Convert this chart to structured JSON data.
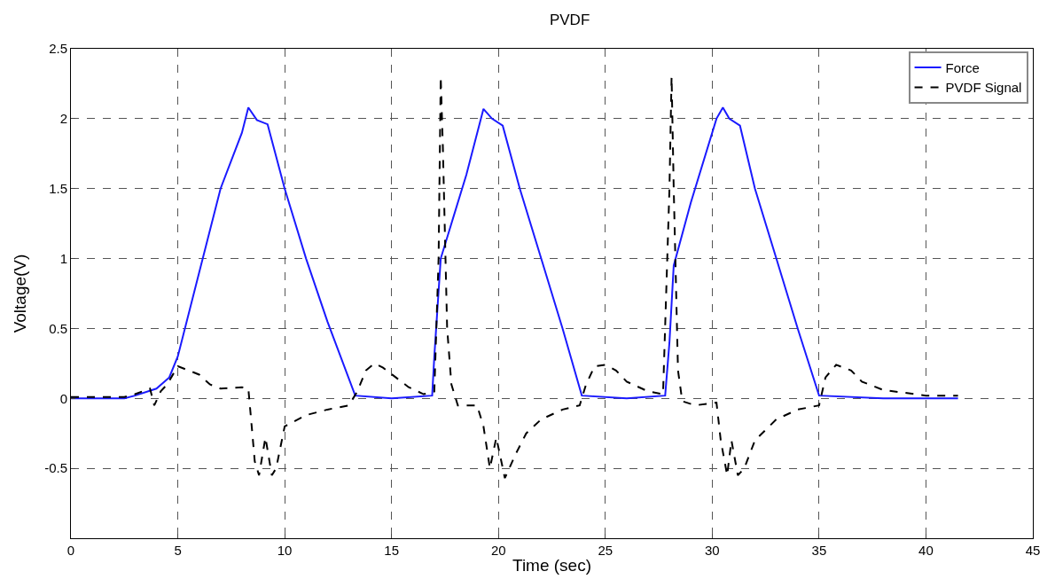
{
  "chart_data": {
    "type": "line",
    "title": "PVDF",
    "xlabel": "Time (sec)",
    "ylabel": "Voltage(V)",
    "xlim": [
      0,
      45
    ],
    "xticks": [
      0,
      5,
      10,
      15,
      20,
      25,
      30,
      35,
      40,
      45
    ],
    "ylim": [
      -1,
      2.5
    ],
    "yticks": [
      -0.5,
      0,
      0.5,
      1,
      1.5,
      2,
      2.5
    ],
    "grid": true,
    "legend": "top right",
    "marker": "none",
    "series": [
      {
        "name": "Force",
        "color": "#1a1aff",
        "line_style": "solid",
        "x": [
          0,
          2.5,
          3,
          4,
          4.6,
          5,
          6,
          7,
          8,
          8.3,
          8.7,
          9.2,
          10,
          11,
          12,
          13.3,
          15,
          16.9,
          17.0,
          17.3,
          18.5,
          19.3,
          19.7,
          20.2,
          21,
          22,
          23,
          23.9,
          26,
          27.8,
          28.0,
          28.2,
          29,
          30.2,
          30.5,
          30.8,
          31.3,
          32,
          33,
          34,
          35,
          38,
          41.5
        ],
        "values": [
          0,
          0,
          0.02,
          0.07,
          0.15,
          0.3,
          0.9,
          1.5,
          1.9,
          2.08,
          1.99,
          1.96,
          1.5,
          1.0,
          0.55,
          0.02,
          0,
          0.02,
          0.3,
          1.0,
          1.6,
          2.07,
          2.0,
          1.95,
          1.5,
          1.0,
          0.5,
          0.02,
          0,
          0.02,
          0.4,
          0.95,
          1.4,
          2.0,
          2.08,
          2.0,
          1.95,
          1.5,
          1.0,
          0.5,
          0.02,
          0,
          0
        ]
      },
      {
        "name": "PVDF Signal",
        "color": "#000000",
        "line_style": "dashed",
        "x": [
          0,
          2.5,
          3,
          3.7,
          3.9,
          4.2,
          4.5,
          5,
          5.5,
          6,
          6.5,
          7,
          8,
          8.3,
          8.4,
          8.6,
          8.8,
          9.1,
          9.4,
          9.6,
          10,
          11,
          12,
          13,
          13.4,
          13.8,
          14.2,
          14.6,
          15.2,
          15.8,
          16.5,
          17,
          17.2,
          17.3,
          17.4,
          17.6,
          17.8,
          18.1,
          19,
          19.3,
          19.6,
          19.9,
          20.3,
          20.8,
          21.3,
          22,
          23,
          23.8,
          24.1,
          24.5,
          25,
          25.5,
          26,
          27,
          27.7,
          28.0,
          28.1,
          28.2,
          28.4,
          28.6,
          29.2,
          30.2,
          30.4,
          30.7,
          30.9,
          31.2,
          31.5,
          32,
          33,
          34,
          35,
          35.3,
          35.8,
          36.5,
          37,
          38,
          40,
          41.5
        ],
        "values": [
          0.01,
          0.01,
          0.03,
          0.07,
          -0.05,
          0.05,
          0.1,
          0.23,
          0.2,
          0.17,
          0.1,
          0.07,
          0.08,
          0.07,
          -0.1,
          -0.45,
          -0.55,
          -0.28,
          -0.55,
          -0.5,
          -0.2,
          -0.12,
          -0.08,
          -0.05,
          0.05,
          0.2,
          0.25,
          0.22,
          0.15,
          0.08,
          0.03,
          0.05,
          1.0,
          2.3,
          1.8,
          0.5,
          0.1,
          -0.05,
          -0.05,
          -0.2,
          -0.5,
          -0.28,
          -0.57,
          -0.4,
          -0.25,
          -0.15,
          -0.08,
          -0.05,
          0.1,
          0.23,
          0.24,
          0.2,
          0.12,
          0.05,
          0.03,
          1.5,
          2.3,
          1.5,
          0.2,
          -0.02,
          -0.05,
          -0.03,
          -0.3,
          -0.55,
          -0.3,
          -0.55,
          -0.5,
          -0.3,
          -0.15,
          -0.08,
          -0.05,
          0.15,
          0.24,
          0.2,
          0.12,
          0.06,
          0.02,
          0.02
        ]
      }
    ]
  }
}
